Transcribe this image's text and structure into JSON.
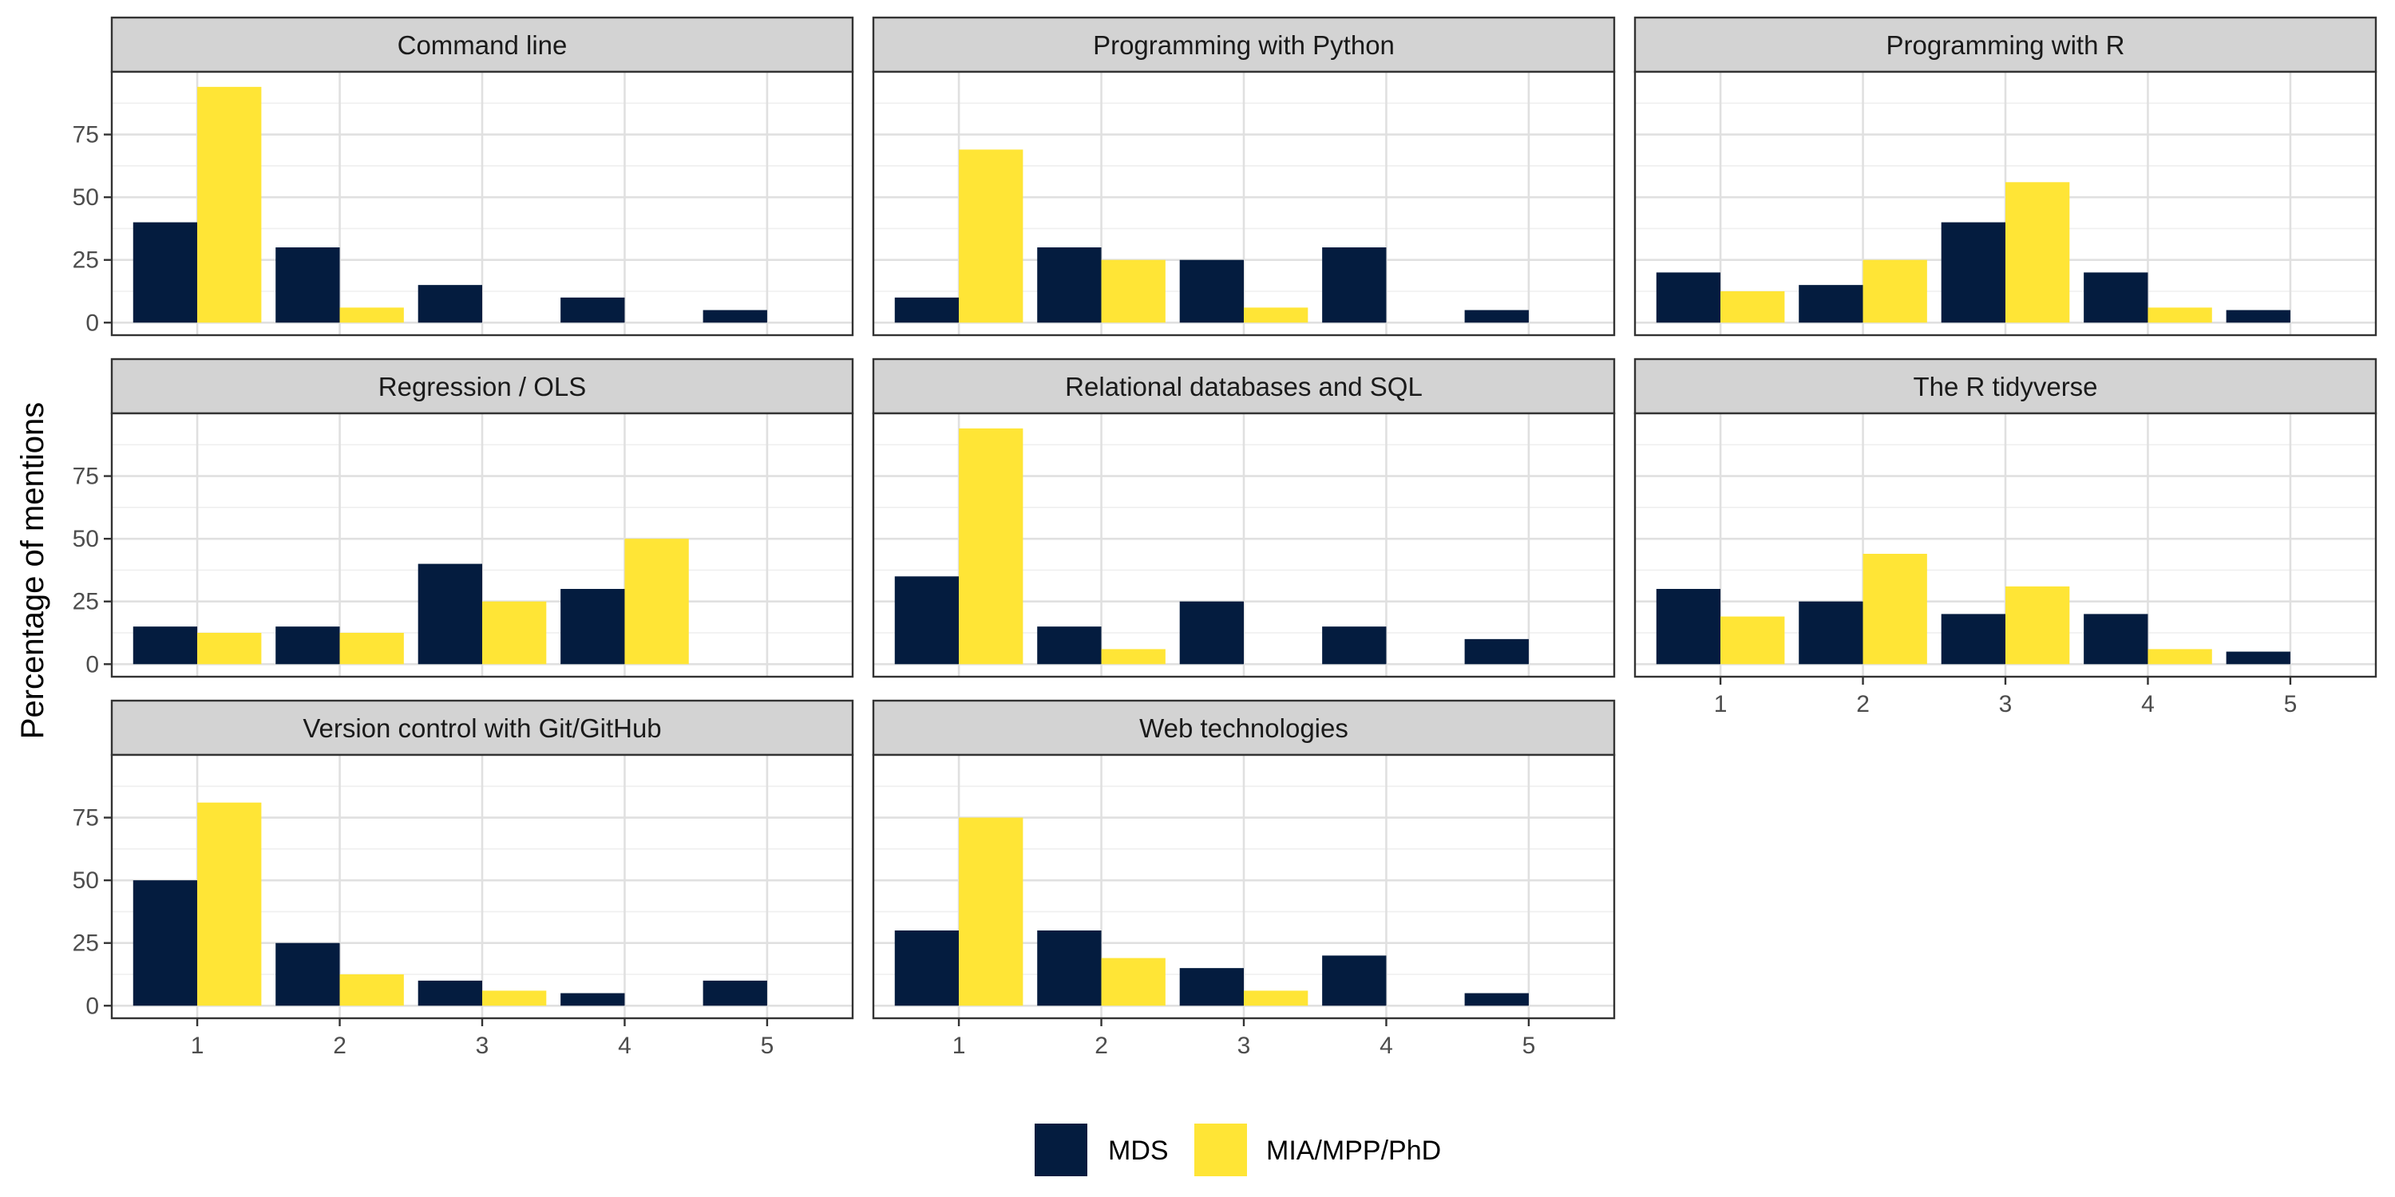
{
  "chart_data": {
    "type": "bar",
    "ylabel": "Percentage of mentions",
    "xlabel": "",
    "categories": [
      "1",
      "2",
      "3",
      "4",
      "5"
    ],
    "y_ticks": [
      "0",
      "25",
      "50",
      "75"
    ],
    "ylim": [
      -5,
      100
    ],
    "grid": true,
    "legend_position": "bottom",
    "series_meta": [
      {
        "name": "MDS",
        "color": "#041C3F"
      },
      {
        "name": "MIA/MPP/PhD",
        "color": "#FFE536"
      }
    ],
    "panels": [
      {
        "title": "Command line",
        "series": [
          {
            "name": "MDS",
            "values": [
              40,
              30,
              15,
              10,
              5
            ]
          },
          {
            "name": "MIA/MPP/PhD",
            "values": [
              94,
              6,
              0,
              0,
              0
            ]
          }
        ]
      },
      {
        "title": "Programming with Python",
        "series": [
          {
            "name": "MDS",
            "values": [
              10,
              30,
              25,
              30,
              5
            ]
          },
          {
            "name": "MIA/MPP/PhD",
            "values": [
              69,
              25,
              6,
              0,
              0
            ]
          }
        ]
      },
      {
        "title": "Programming with R",
        "series": [
          {
            "name": "MDS",
            "values": [
              20,
              15,
              40,
              20,
              5
            ]
          },
          {
            "name": "MIA/MPP/PhD",
            "values": [
              12.5,
              25,
              56,
              6,
              0
            ]
          }
        ]
      },
      {
        "title": "Regression / OLS",
        "series": [
          {
            "name": "MDS",
            "values": [
              15,
              15,
              40,
              30,
              0
            ]
          },
          {
            "name": "MIA/MPP/PhD",
            "values": [
              12.5,
              12.5,
              25,
              50,
              0
            ]
          }
        ]
      },
      {
        "title": "Relational databases and SQL",
        "series": [
          {
            "name": "MDS",
            "values": [
              35,
              15,
              25,
              15,
              10
            ]
          },
          {
            "name": "MIA/MPP/PhD",
            "values": [
              94,
              6,
              0,
              0,
              0
            ]
          }
        ]
      },
      {
        "title": "The R tidyverse",
        "series": [
          {
            "name": "MDS",
            "values": [
              30,
              25,
              20,
              20,
              5
            ]
          },
          {
            "name": "MIA/MPP/PhD",
            "values": [
              19,
              44,
              31,
              6,
              0
            ]
          }
        ]
      },
      {
        "title": "Version control with Git/GitHub",
        "series": [
          {
            "name": "MDS",
            "values": [
              50,
              25,
              10,
              5,
              10
            ]
          },
          {
            "name": "MIA/MPP/PhD",
            "values": [
              81,
              12.5,
              6,
              0,
              0
            ]
          }
        ]
      },
      {
        "title": "Web technologies",
        "series": [
          {
            "name": "MDS",
            "values": [
              30,
              30,
              15,
              20,
              5
            ]
          },
          {
            "name": "MIA/MPP/PhD",
            "values": [
              75,
              19,
              6,
              0,
              0
            ]
          }
        ]
      }
    ]
  }
}
